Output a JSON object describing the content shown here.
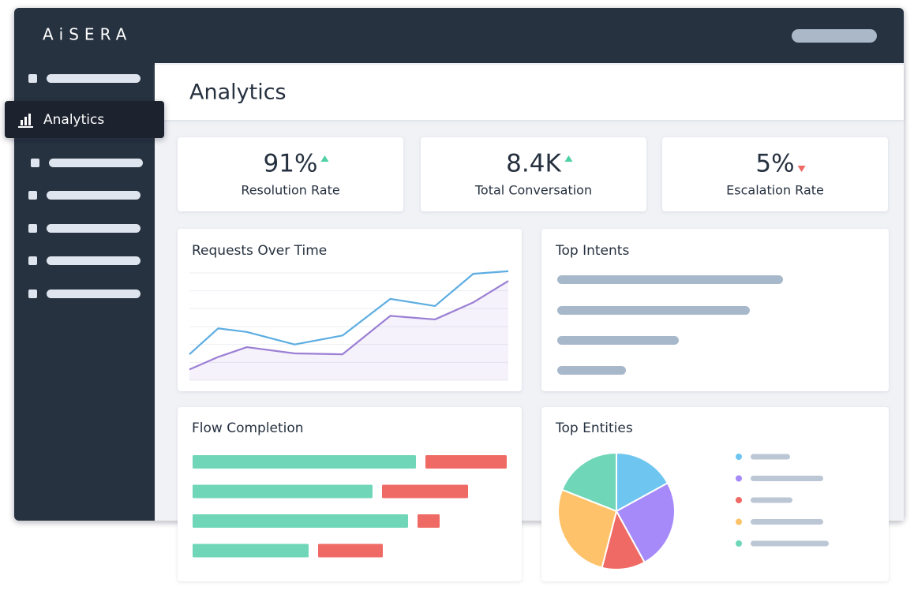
{
  "logo": "AiSERA",
  "nav": {
    "active": "Analytics"
  },
  "header": {
    "title": "Analytics"
  },
  "kpis": [
    {
      "value": "91%",
      "label": "Resolution Rate",
      "trend": "up"
    },
    {
      "value": "8.4K",
      "label": "Total Conversation",
      "trend": "up"
    },
    {
      "value": "5%",
      "label": "Escalation Rate",
      "trend": "down"
    }
  ],
  "panels": {
    "top_intents": {
      "title": "Top Intents"
    }
  },
  "chart_data": [
    {
      "type": "line",
      "title": "Requests Over Time",
      "x": [
        0,
        9,
        18,
        33,
        48,
        63,
        77,
        89,
        100
      ],
      "xlim": [
        0,
        100
      ],
      "ylim": [
        0,
        6
      ],
      "yticks": [
        0,
        1,
        2,
        3,
        4,
        5,
        6
      ],
      "grid": true,
      "series": [
        {
          "color": "#5dade2",
          "values": [
            1.45,
            2.9,
            2.7,
            2.0,
            2.5,
            4.55,
            4.15,
            5.95,
            6.1
          ]
        },
        {
          "color": "#9b7fd4",
          "area": true,
          "values": [
            0.6,
            1.3,
            1.85,
            1.5,
            1.45,
            3.6,
            3.4,
            4.35,
            5.55
          ]
        }
      ]
    },
    {
      "type": "pie",
      "title": "Top Entities",
      "values": [
        17,
        25,
        12,
        27,
        19
      ],
      "colors": [
        "#6ec6f0",
        "#a68af9",
        "#ef6a65",
        "#fdc26a",
        "#6fd6b8"
      ]
    },
    {
      "type": "stacked-bar",
      "title": "Flow Completion",
      "orientation": "horizontal",
      "categories": [
        null,
        null,
        null,
        null
      ],
      "xlim": [
        0,
        400
      ],
      "series": [
        {
          "color": "#6fd6b8",
          "values": [
            283,
            228,
            273,
            147
          ]
        },
        {
          "color": "#ef6a65",
          "values": [
            103,
            109,
            28,
            82
          ]
        }
      ]
    }
  ]
}
